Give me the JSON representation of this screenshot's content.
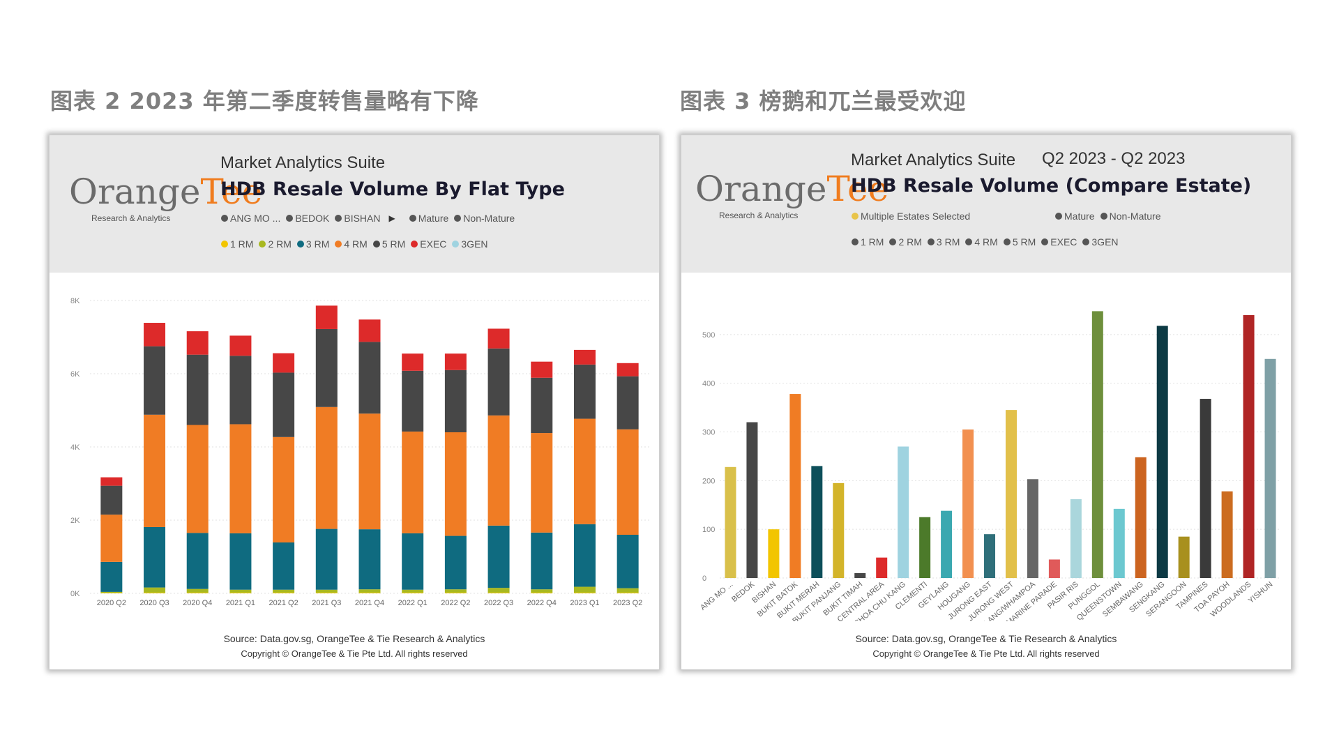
{
  "left": {
    "caption": "图表 2 2023 年第二季度转售量略有下降",
    "logo": {
      "text_main": "Orange",
      "text_accent": "Tee",
      "sub": "Research & Analytics"
    },
    "suite": "Market Analytics Suite",
    "title": "HDB Resale Volume By Flat Type",
    "filter_legend": [
      {
        "label": "ANG MO ...",
        "color": "#555555"
      },
      {
        "label": "BEDOK",
        "color": "#555555"
      },
      {
        "label": "BISHAN",
        "color": "#555555"
      }
    ],
    "maturity_legend": [
      {
        "label": "Mature",
        "color": "#555555"
      },
      {
        "label": "Non-Mature",
        "color": "#555555"
      }
    ],
    "type_legend": [
      {
        "label": "1 RM",
        "color": "#f2c500"
      },
      {
        "label": "2 RM",
        "color": "#a8b820"
      },
      {
        "label": "3 RM",
        "color": "#0f6b80"
      },
      {
        "label": "4 RM",
        "color": "#f07c24"
      },
      {
        "label": "5 RM",
        "color": "#474747"
      },
      {
        "label": "EXEC",
        "color": "#dd2a2a"
      },
      {
        "label": "3GEN",
        "color": "#9fd3e0"
      }
    ],
    "source": "Source: Data.gov.sg, OrangeTee & Tie Research & Analytics",
    "copyright": "Copyright © OrangeTee & Tie Pte Ltd. All rights reserved"
  },
  "right": {
    "caption": "图表 3 榜鹅和兀兰最受欢迎",
    "logo": {
      "text_main": "Orange",
      "text_accent": "Tee",
      "sub": "Research & Analytics"
    },
    "suite": "Market Analytics Suite",
    "period": "Q2 2023 - Q2 2023",
    "title": "HDB Resale Volume (Compare Estate)",
    "filter_legend": [
      {
        "label": "Multiple Estates Selected",
        "color": "#e8c44a"
      }
    ],
    "maturity_legend": [
      {
        "label": "Mature",
        "color": "#555555"
      },
      {
        "label": "Non-Mature",
        "color": "#555555"
      }
    ],
    "type_legend": [
      {
        "label": "1 RM",
        "color": "#555555"
      },
      {
        "label": "2 RM",
        "color": "#555555"
      },
      {
        "label": "3 RM",
        "color": "#555555"
      },
      {
        "label": "4 RM",
        "color": "#555555"
      },
      {
        "label": "5 RM",
        "color": "#555555"
      },
      {
        "label": "EXEC",
        "color": "#555555"
      },
      {
        "label": "3GEN",
        "color": "#555555"
      }
    ],
    "source": "Source: Data.gov.sg, OrangeTee & Tie Research & Analytics",
    "copyright": "Copyright © OrangeTee & Tie Pte Ltd. All rights reserved"
  },
  "chart_data": [
    {
      "type": "bar",
      "stacked": true,
      "title": "HDB Resale Volume By Flat Type",
      "categories": [
        "2020 Q2",
        "2020 Q3",
        "2020 Q4",
        "2021 Q1",
        "2021 Q2",
        "2021 Q3",
        "2021 Q4",
        "2022 Q1",
        "2022 Q2",
        "2022 Q3",
        "2022 Q4",
        "2023 Q1",
        "2023 Q2"
      ],
      "yticks": [
        0,
        2000,
        4000,
        6000,
        8000
      ],
      "ytick_labels": [
        "0K",
        "2K",
        "4K",
        "6K",
        "8K"
      ],
      "ylim": [
        0,
        8000
      ],
      "grid": true,
      "series": [
        {
          "name": "1 RM",
          "color": "#f2c500",
          "values": [
            10,
            20,
            20,
            20,
            20,
            20,
            20,
            20,
            20,
            20,
            20,
            20,
            20
          ]
        },
        {
          "name": "2 RM",
          "color": "#a8b820",
          "values": [
            30,
            140,
            100,
            80,
            80,
            80,
            90,
            80,
            90,
            130,
            90,
            160,
            120
          ]
        },
        {
          "name": "3 RM",
          "color": "#0f6b80",
          "values": [
            820,
            1650,
            1530,
            1540,
            1290,
            1660,
            1640,
            1540,
            1460,
            1700,
            1550,
            1710,
            1460
          ]
        },
        {
          "name": "4 RM",
          "color": "#f07c24",
          "values": [
            1290,
            3070,
            2950,
            2980,
            2880,
            3330,
            3160,
            2780,
            2830,
            3010,
            2720,
            2880,
            2880
          ]
        },
        {
          "name": "5 RM",
          "color": "#474747",
          "values": [
            790,
            1870,
            1920,
            1870,
            1760,
            2130,
            1960,
            1660,
            1700,
            1830,
            1510,
            1480,
            1450
          ]
        },
        {
          "name": "EXEC",
          "color": "#dd2a2a",
          "values": [
            230,
            640,
            640,
            550,
            530,
            640,
            610,
            470,
            450,
            540,
            440,
            400,
            360
          ]
        },
        {
          "name": "3GEN",
          "color": "#9fd3e0",
          "values": [
            0,
            0,
            0,
            0,
            0,
            0,
            0,
            0,
            0,
            0,
            0,
            0,
            0
          ]
        }
      ]
    },
    {
      "type": "bar",
      "title": "HDB Resale Volume (Compare Estate)",
      "categories": [
        "ANG MO ...",
        "BEDOK",
        "BISHAN",
        "BUKIT BATOK",
        "BUKIT MERAH",
        "BUKIT PANJANG",
        "BUKIT TIMAH",
        "CENTRAL AREA",
        "CHOA CHU KANG",
        "CLEMENTI",
        "GEYLANG",
        "HOUGANG",
        "JURONG EAST",
        "JURONG WEST",
        "KALLANG/WHAMPOA",
        "MARINE PARADE",
        "PASIR RIS",
        "PUNGGOL",
        "QUEENSTOWN",
        "SEMBAWANG",
        "SENGKANG",
        "SERANGOON",
        "TAMPINES",
        "TOA PAYOH",
        "WOODLANDS",
        "YISHUN"
      ],
      "values": [
        228,
        320,
        100,
        378,
        230,
        195,
        10,
        42,
        270,
        125,
        138,
        305,
        90,
        345,
        203,
        38,
        162,
        548,
        142,
        248,
        518,
        85,
        368,
        178,
        540,
        450
      ],
      "colors": [
        "#d9c04a",
        "#474747",
        "#f2c500",
        "#f07c24",
        "#0d4f5a",
        "#d3b42a",
        "#474747",
        "#dd2a2a",
        "#9fd3e0",
        "#4c7a2a",
        "#3aa8b0",
        "#f29050",
        "#2f6f7a",
        "#e2c04a",
        "#666666",
        "#e05a5a",
        "#aad6dc",
        "#6e8f3c",
        "#6cc8d0",
        "#cc6420",
        "#0d3a44",
        "#a8901e",
        "#3a3a3a",
        "#cc6c20",
        "#b02525",
        "#7fa0a6"
      ],
      "yticks": [
        0,
        100,
        200,
        300,
        400,
        500
      ],
      "ylim": [
        0,
        570
      ],
      "grid": true
    }
  ]
}
